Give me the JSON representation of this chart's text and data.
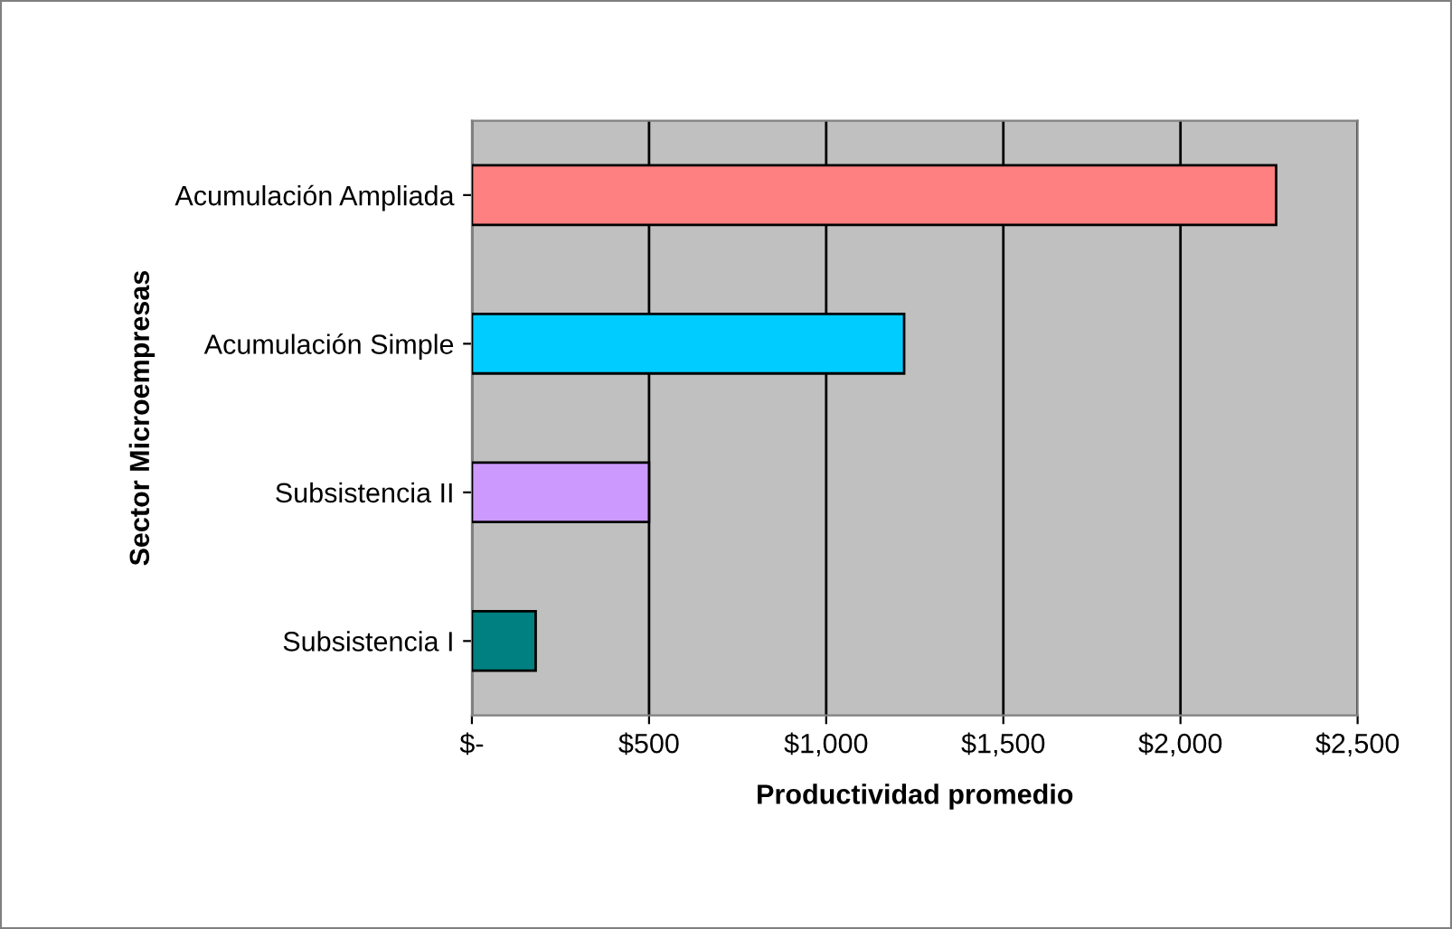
{
  "chart_data": {
    "type": "bar",
    "orientation": "horizontal",
    "categories": [
      "Acumulación Ampliada",
      "Acumulación Simple",
      "Subsistencia II",
      "Subsistencia I"
    ],
    "values": [
      2270,
      1220,
      500,
      180
    ],
    "colors": [
      "#ff8080",
      "#00ccff",
      "#cc99ff",
      "#008080"
    ],
    "xlabel": "Productividad promedio",
    "ylabel": "Sector Microempresas",
    "xlim": [
      0,
      2500
    ],
    "xticks": [
      {
        "value": 0,
        "label": "$-"
      },
      {
        "value": 500,
        "label": "$500"
      },
      {
        "value": 1000,
        "label": "$1,000"
      },
      {
        "value": 1500,
        "label": "$1,500"
      },
      {
        "value": 2000,
        "label": "$2,000"
      },
      {
        "value": 2500,
        "label": "$2,500"
      }
    ],
    "grid": "x"
  }
}
